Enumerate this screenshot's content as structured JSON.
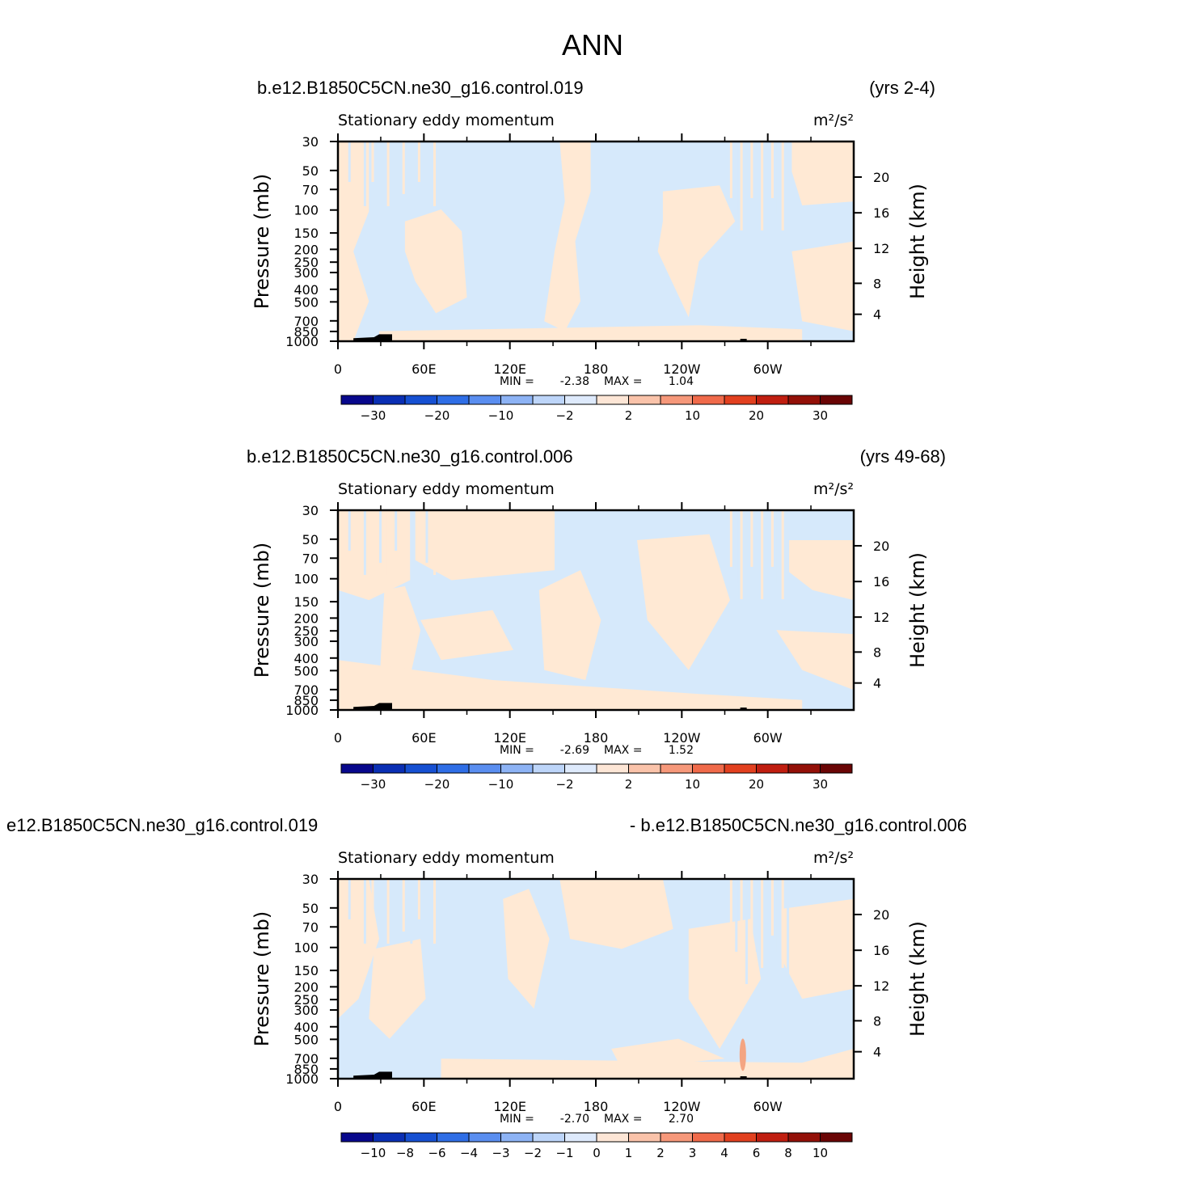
{
  "figure_title": "ANN",
  "colors": {
    "positive_fill": "#ffe9d4",
    "negative_fill": "#d6e9fb",
    "orange_accent": "#f4a582",
    "frame": "#000000"
  },
  "chart_data": [
    {
      "type": "heatmap",
      "case_left": "b.e12.B1850C5CN.ne30_g16.control.019",
      "case_right": "(yrs 2-4)",
      "title": "Stationary eddy momentum",
      "units": "m²/s²",
      "ylabel": "Pressure (mb)",
      "ylabel_right": "Height (km)",
      "x_ticks": [
        "0",
        "60E",
        "120E",
        "180",
        "120W",
        "60W"
      ],
      "y_ticks": [
        "30",
        "50",
        "70",
        "100",
        "150",
        "200",
        "250",
        "300",
        "400",
        "500",
        "700",
        "850",
        "1000"
      ],
      "y_ticks_right": [
        "20",
        "16",
        "12",
        "8",
        "4"
      ],
      "stats": {
        "min_label": "MIN =",
        "min": "-2.38",
        "max_label": "MAX =",
        "max": "1.04"
      },
      "colorbar_labels": [
        "−30",
        "−20",
        "−10",
        "−2",
        "2",
        "10",
        "20",
        "30"
      ],
      "colorbar_colors": [
        "#08088c",
        "#0a2fb4",
        "#1650d2",
        "#2f6ee6",
        "#5a8ef0",
        "#8db3f5",
        "#bdd5f9",
        "#deeafc",
        "#fde6d6",
        "#fac3aa",
        "#f6987a",
        "#f06a4a",
        "#e2401f",
        "#c01e10",
        "#931008",
        "#6a0505"
      ]
    },
    {
      "type": "heatmap",
      "case_left": "b.e12.B1850C5CN.ne30_g16.control.006",
      "case_right": "(yrs 49-68)",
      "title": "Stationary eddy momentum",
      "units": "m²/s²",
      "ylabel": "Pressure (mb)",
      "ylabel_right": "Height (km)",
      "x_ticks": [
        "0",
        "60E",
        "120E",
        "180",
        "120W",
        "60W"
      ],
      "y_ticks": [
        "30",
        "50",
        "70",
        "100",
        "150",
        "200",
        "250",
        "300",
        "400",
        "500",
        "700",
        "850",
        "1000"
      ],
      "y_ticks_right": [
        "20",
        "16",
        "12",
        "8",
        "4"
      ],
      "stats": {
        "min_label": "MIN =",
        "min": "-2.69",
        "max_label": "MAX =",
        "max": "1.52"
      },
      "colorbar_labels": [
        "−30",
        "−20",
        "−10",
        "−2",
        "2",
        "10",
        "20",
        "30"
      ],
      "colorbar_colors": [
        "#08088c",
        "#0a2fb4",
        "#1650d2",
        "#2f6ee6",
        "#5a8ef0",
        "#8db3f5",
        "#bdd5f9",
        "#deeafc",
        "#fde6d6",
        "#fac3aa",
        "#f6987a",
        "#f06a4a",
        "#e2401f",
        "#c01e10",
        "#931008",
        "#6a0505"
      ]
    },
    {
      "type": "heatmap",
      "case_left": "e12.B1850C5CN.ne30_g16.control.019",
      "case_right": "- b.e12.B1850C5CN.ne30_g16.control.006",
      "title": "Stationary eddy momentum",
      "units": "m²/s²",
      "ylabel": "Pressure (mb)",
      "ylabel_right": "Height (km)",
      "x_ticks": [
        "0",
        "60E",
        "120E",
        "180",
        "120W",
        "60W"
      ],
      "y_ticks": [
        "30",
        "50",
        "70",
        "100",
        "150",
        "200",
        "250",
        "300",
        "400",
        "500",
        "700",
        "850",
        "1000"
      ],
      "y_ticks_right": [
        "20",
        "16",
        "12",
        "8",
        "4"
      ],
      "stats": {
        "min_label": "MIN =",
        "min": "-2.70",
        "max_label": "MAX =",
        "max": "2.70"
      },
      "colorbar_labels": [
        "−10",
        "−8",
        "−6",
        "−4",
        "−3",
        "−2",
        "−1",
        "0",
        "1",
        "2",
        "3",
        "4",
        "6",
        "8",
        "10"
      ],
      "colorbar_colors": [
        "#08088c",
        "#0a2fb4",
        "#1650d2",
        "#2f6ee6",
        "#5a8ef0",
        "#8db3f5",
        "#bdd5f9",
        "#deeafc",
        "#fde6d6",
        "#fac3aa",
        "#f6987a",
        "#f06a4a",
        "#e2401f",
        "#c01e10",
        "#931008",
        "#6a0505"
      ]
    }
  ]
}
